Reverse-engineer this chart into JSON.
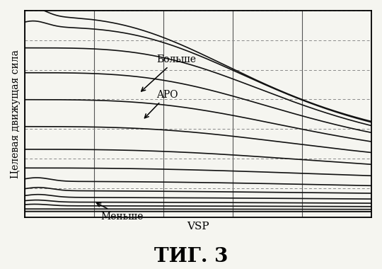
{
  "title": "ΤИГ. 3",
  "xlabel": "VSP",
  "ylabel": "Целевая движущая сила",
  "background_color": "#f5f5f0",
  "grid_color_v": "#555555",
  "grid_color_h": "#888888",
  "line_color": "#111111",
  "xlim": [
    0,
    1
  ],
  "ylim": [
    0,
    1
  ],
  "label_bolshe": "Больше",
  "label_apo": "APO",
  "label_menshe": "Меньше",
  "n_vert_grid": 5,
  "n_horiz_grid": 7
}
